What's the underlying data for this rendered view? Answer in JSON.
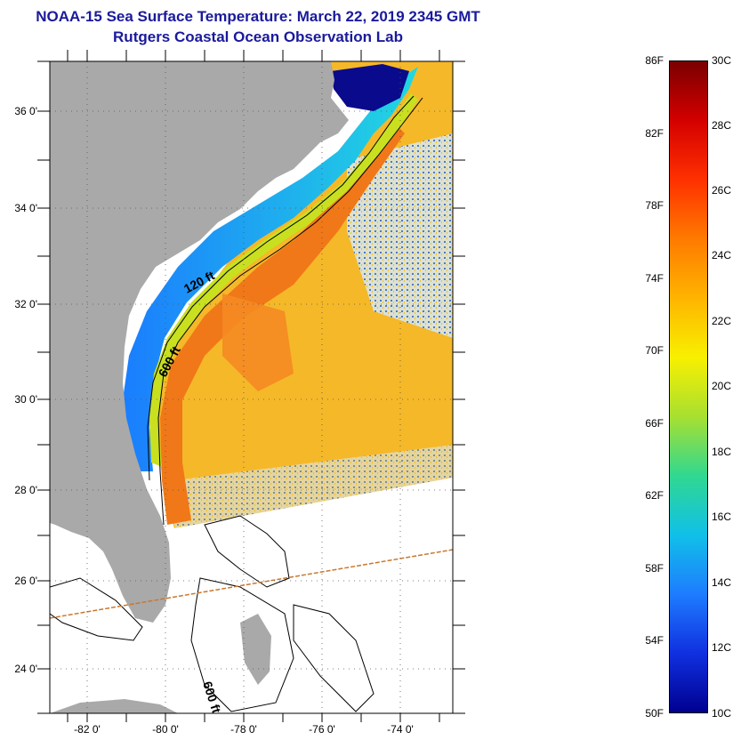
{
  "title": {
    "line1": "NOAA-15 Sea Surface Temperature:  March 22, 2019 2345 GMT",
    "line2": "Rutgers Coastal Ocean Observation Lab"
  },
  "map": {
    "latitude_labels": [
      "36 0'",
      "34 0'",
      "32 0'",
      "30 0'",
      "28 0'",
      "26 0'",
      "24 0'"
    ],
    "longitude_labels": [
      "-82 0'",
      "-80 0'",
      "-78 0'",
      "-76 0'",
      "-74 0'"
    ],
    "contour_labels": [
      "120 ft",
      "600 ft",
      "600 ft"
    ],
    "colors": {
      "land": "#a9a9a9",
      "cold_water": "#0a0a8c",
      "shelf_water": "#1e8cff",
      "gulf_stream": "#f07818",
      "offshore": "#f5b828",
      "contour": "#000000"
    }
  },
  "colorbar": {
    "fahrenheit_labels": [
      "86F",
      "82F",
      "78F",
      "74F",
      "70F",
      "66F",
      "62F",
      "58F",
      "54F",
      "50F"
    ],
    "celsius_labels": [
      "30C",
      "28C",
      "26C",
      "24C",
      "22C",
      "20C",
      "18C",
      "16C",
      "14C",
      "12C",
      "10C"
    ],
    "gradient": [
      "#7a0000",
      "#d40000",
      "#ff3000",
      "#ff7a00",
      "#ffb400",
      "#f8f000",
      "#a8e030",
      "#30d890",
      "#10c0e8",
      "#1e7cff",
      "#1030e0",
      "#000090"
    ]
  }
}
